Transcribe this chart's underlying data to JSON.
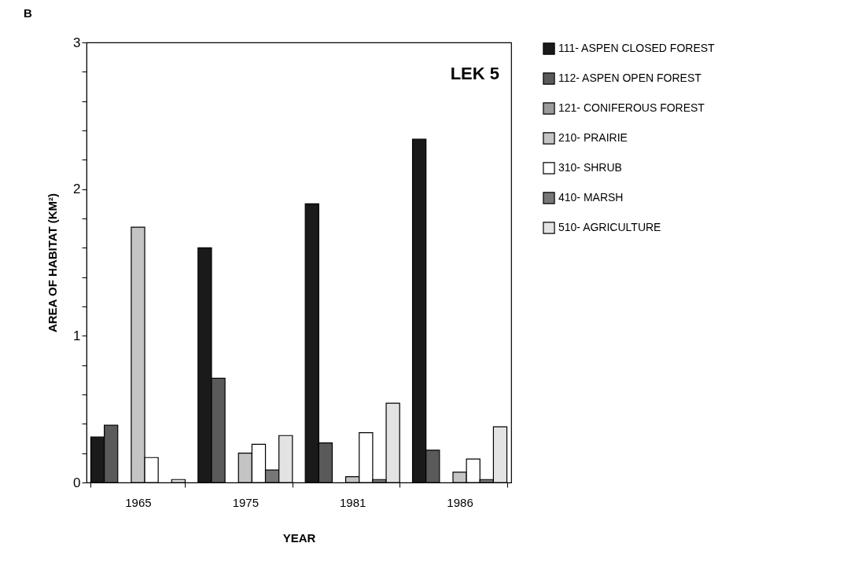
{
  "chart_data": {
    "type": "bar",
    "title": "B",
    "xlabel": "YEAR",
    "ylabel": "AREA OF HABITAT (KM²)",
    "annotations": [
      "LEK 5"
    ],
    "categories": [
      "1965",
      "1975",
      "1981",
      "1986"
    ],
    "series": [
      {
        "name": "111- ASPEN CLOSED FOREST",
        "color": "#1a1a1a",
        "values": [
          0.31,
          1.6,
          1.9,
          2.34
        ]
      },
      {
        "name": "112- ASPEN OPEN FOREST",
        "color": "#5a5a5a",
        "values": [
          0.39,
          0.71,
          0.27,
          0.22
        ]
      },
      {
        "name": "121- CONIFEROUS FOREST",
        "color": "#9a9a9a",
        "values": [
          null,
          null,
          null,
          null
        ]
      },
      {
        "name": "210- PRAIRIE",
        "color": "#c4c4c4",
        "values": [
          1.74,
          0.2,
          0.04,
          0.07
        ]
      },
      {
        "name": "310- SHRUB",
        "color": "#ffffff",
        "values": [
          0.17,
          0.26,
          0.34,
          0.16
        ]
      },
      {
        "name": "410- MARSH",
        "color": "#777777",
        "values": [
          null,
          0.085,
          0.02,
          0.02
        ]
      },
      {
        "name": "510- AGRICULTURE",
        "color": "#e3e3e3",
        "values": [
          0.02,
          0.32,
          0.54,
          0.38
        ]
      }
    ],
    "ylim": [
      0,
      3
    ],
    "yticks": [
      0,
      {
        "value": 0.2,
        "label": null
      },
      {
        "value": 0.4,
        "label": null
      },
      {
        "value": 0.6,
        "label": null
      },
      {
        "value": 0.8,
        "label": null
      },
      1,
      {
        "value": 1.2,
        "label": null
      },
      {
        "value": 1.4,
        "label": null
      },
      {
        "value": 1.6,
        "label": null
      },
      {
        "value": 1.8,
        "label": null
      },
      2,
      {
        "value": 2.2,
        "label": null
      },
      {
        "value": 2.4,
        "label": null
      },
      {
        "value": 2.6,
        "label": null
      },
      {
        "value": 2.8,
        "label": null
      },
      3
    ],
    "legend": "right",
    "grid": false
  }
}
